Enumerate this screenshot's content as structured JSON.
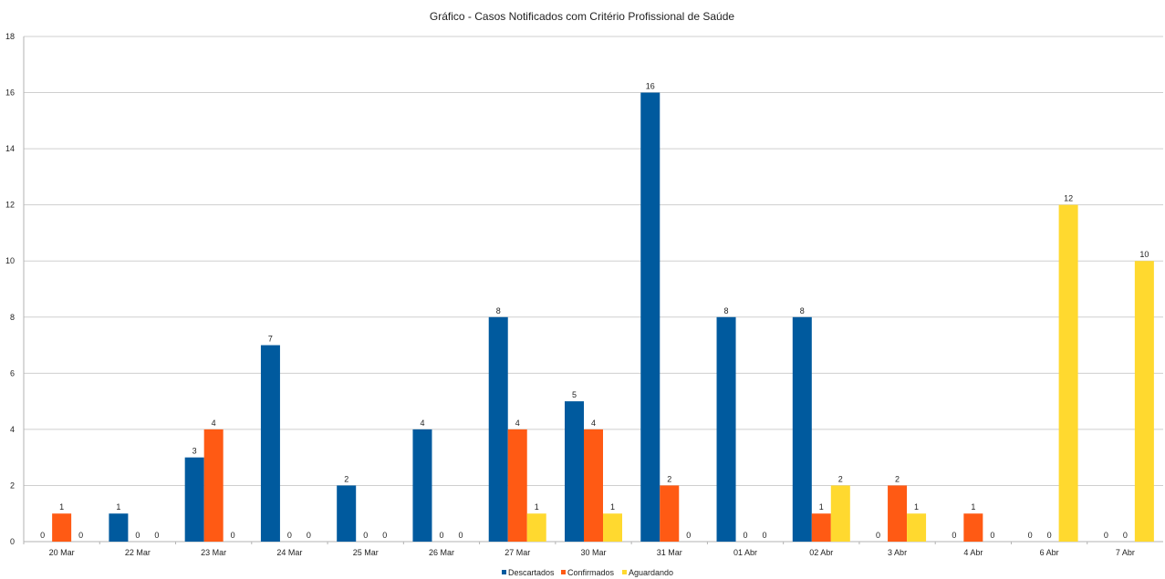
{
  "chart_data": {
    "type": "bar",
    "title": "Gráfico - Casos Notificados com Critério Profissional de Saúde",
    "xlabel": "",
    "ylabel": "",
    "ylim": [
      0,
      18
    ],
    "ystep": 2,
    "yticks": [
      "0",
      "2",
      "4",
      "6",
      "8",
      "10",
      "12",
      "14",
      "16",
      "18"
    ],
    "grid": true,
    "legend_position": "bottom",
    "categories": [
      "20 Mar",
      "22 Mar",
      "23 Mar",
      "24 Mar",
      "25 Mar",
      "26 Mar",
      "27 Mar",
      "30 Mar",
      "31 Mar",
      "01 Abr",
      "02 Abr",
      "3 Abr",
      "4 Abr",
      "6 Abr",
      "7 Abr"
    ],
    "series": [
      {
        "name": "Descartados",
        "color": "#005a9e",
        "values": [
          0,
          1,
          3,
          7,
          2,
          4,
          8,
          5,
          16,
          8,
          8,
          0,
          0,
          0,
          0
        ]
      },
      {
        "name": "Confirmados",
        "color": "#ff5a14",
        "values": [
          1,
          0,
          4,
          0,
          0,
          0,
          4,
          4,
          2,
          0,
          1,
          2,
          1,
          0,
          0
        ]
      },
      {
        "name": "Aguardando",
        "color": "#ffd92f",
        "values": [
          0,
          0,
          0,
          0,
          0,
          0,
          1,
          1,
          0,
          0,
          2,
          1,
          0,
          12,
          10
        ]
      }
    ]
  }
}
